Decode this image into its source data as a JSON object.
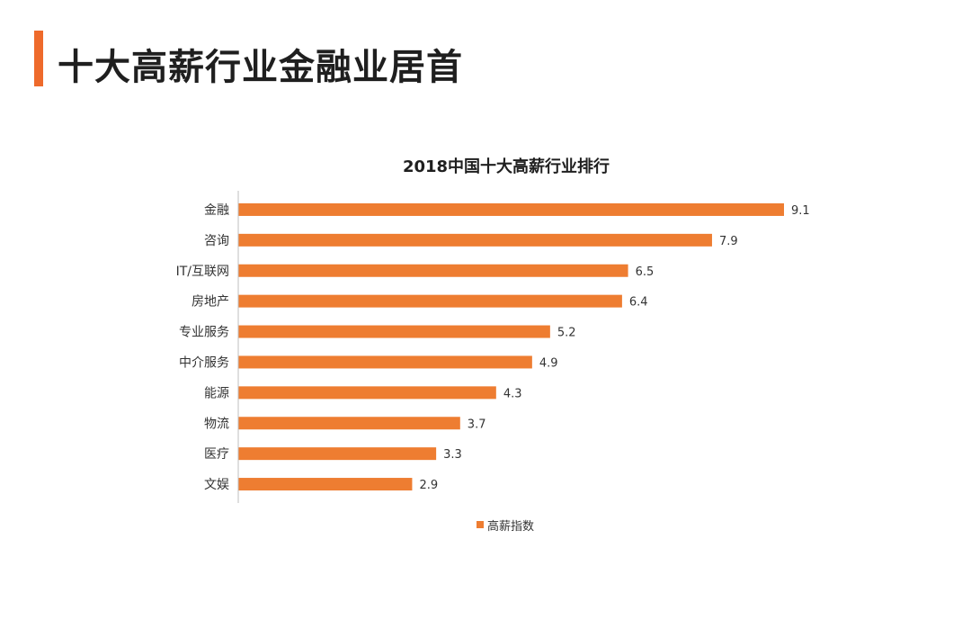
{
  "page": {
    "title": "十大高薪行业金融业居首"
  },
  "colors": {
    "accent": "#ee6a2b",
    "bar": "#ee7d31",
    "text": "#333333"
  },
  "chart_data": {
    "type": "bar",
    "orientation": "horizontal",
    "title": "2018中国十大高薪行业排行",
    "categories": [
      "金融",
      "咨询",
      "IT/互联网",
      "房地产",
      "专业服务",
      "中介服务",
      "能源",
      "物流",
      "医疗",
      "文娱"
    ],
    "series": [
      {
        "name": "高薪指数",
        "values": [
          9.1,
          7.9,
          6.5,
          6.4,
          5.2,
          4.9,
          4.3,
          3.7,
          3.3,
          2.9
        ]
      }
    ],
    "xlim": [
      0,
      9.1
    ],
    "legend_position": "bottom-center"
  }
}
